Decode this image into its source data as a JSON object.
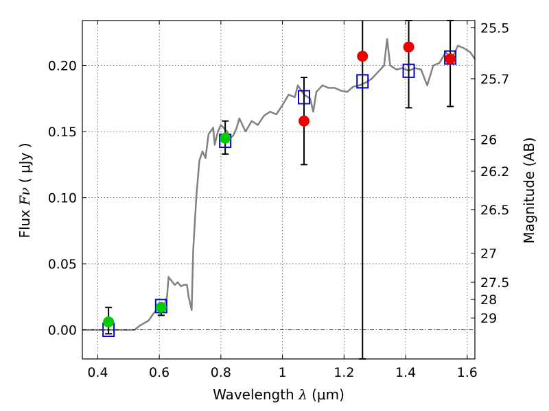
{
  "chart_data": {
    "type": "scatter",
    "xlabel_prefix": "Wavelength",
    "xlabel_symbol": "λ",
    "xlabel_unit": "(μm)",
    "ylabel_prefix": "Flux",
    "ylabel_symbol": "Fν",
    "ylabel_unit": "( μJy )",
    "y2label": "Magnitude (AB)",
    "xlim": [
      0.35,
      1.625
    ],
    "ylim": [
      -0.022,
      0.234
    ],
    "grid": true,
    "x_ticks": [
      {
        "value": 0.4,
        "label": "0.4"
      },
      {
        "value": 0.6,
        "label": "0.6"
      },
      {
        "value": 0.8,
        "label": "0.8"
      },
      {
        "value": 1.0,
        "label": "1"
      },
      {
        "value": 1.2,
        "label": "1.2"
      },
      {
        "value": 1.4,
        "label": "1.4"
      },
      {
        "value": 1.6,
        "label": "1.6"
      }
    ],
    "y_ticks": [
      {
        "value": 0.0,
        "label": "0.00"
      },
      {
        "value": 0.05,
        "label": "0.05"
      },
      {
        "value": 0.1,
        "label": "0.10"
      },
      {
        "value": 0.15,
        "label": "0.15"
      },
      {
        "value": 0.2,
        "label": "0.20"
      }
    ],
    "magnitude_ticks": [
      {
        "flux": 0.2285,
        "label": "25.5"
      },
      {
        "flux": 0.19,
        "label": "25.7"
      },
      {
        "flux": 0.144,
        "label": "26"
      },
      {
        "flux": 0.12,
        "label": "26.2"
      },
      {
        "flux": 0.091,
        "label": "26.5"
      },
      {
        "flux": 0.058,
        "label": "27"
      },
      {
        "flux": 0.036,
        "label": "27.5"
      },
      {
        "flux": 0.023,
        "label": "28"
      },
      {
        "flux": 0.009,
        "label": "29"
      }
    ],
    "colors": {
      "model": "#808080",
      "model_photometry": "#0000cc",
      "detections": "#00cc00",
      "upper_constraints": "#ee0000",
      "errorbar": "#000000",
      "zero_line": "#000000"
    },
    "model_spectrum": [
      [
        0.35,
        0.0
      ],
      [
        0.52,
        0.0
      ],
      [
        0.535,
        0.003
      ],
      [
        0.55,
        0.005
      ],
      [
        0.565,
        0.007
      ],
      [
        0.58,
        0.012
      ],
      [
        0.59,
        0.015
      ],
      [
        0.6,
        0.016
      ],
      [
        0.615,
        0.018
      ],
      [
        0.625,
        0.025
      ],
      [
        0.63,
        0.04
      ],
      [
        0.64,
        0.037
      ],
      [
        0.65,
        0.034
      ],
      [
        0.66,
        0.036
      ],
      [
        0.67,
        0.033
      ],
      [
        0.68,
        0.034
      ],
      [
        0.69,
        0.034
      ],
      [
        0.695,
        0.025
      ],
      [
        0.705,
        0.015
      ],
      [
        0.71,
        0.06
      ],
      [
        0.72,
        0.1
      ],
      [
        0.73,
        0.128
      ],
      [
        0.74,
        0.135
      ],
      [
        0.75,
        0.13
      ],
      [
        0.76,
        0.148
      ],
      [
        0.775,
        0.153
      ],
      [
        0.78,
        0.14
      ],
      [
        0.79,
        0.15
      ],
      [
        0.8,
        0.155
      ],
      [
        0.82,
        0.15
      ],
      [
        0.83,
        0.145
      ],
      [
        0.84,
        0.147
      ],
      [
        0.85,
        0.152
      ],
      [
        0.86,
        0.16
      ],
      [
        0.87,
        0.155
      ],
      [
        0.88,
        0.15
      ],
      [
        0.9,
        0.158
      ],
      [
        0.92,
        0.155
      ],
      [
        0.94,
        0.162
      ],
      [
        0.96,
        0.165
      ],
      [
        0.98,
        0.163
      ],
      [
        1.0,
        0.17
      ],
      [
        1.02,
        0.178
      ],
      [
        1.04,
        0.176
      ],
      [
        1.05,
        0.185
      ],
      [
        1.07,
        0.178
      ],
      [
        1.09,
        0.175
      ],
      [
        1.1,
        0.165
      ],
      [
        1.11,
        0.18
      ],
      [
        1.13,
        0.185
      ],
      [
        1.15,
        0.183
      ],
      [
        1.17,
        0.183
      ],
      [
        1.19,
        0.181
      ],
      [
        1.21,
        0.18
      ],
      [
        1.23,
        0.184
      ],
      [
        1.25,
        0.185
      ],
      [
        1.27,
        0.187
      ],
      [
        1.29,
        0.19
      ],
      [
        1.31,
        0.195
      ],
      [
        1.33,
        0.2
      ],
      [
        1.34,
        0.22
      ],
      [
        1.35,
        0.2
      ],
      [
        1.37,
        0.197
      ],
      [
        1.39,
        0.198
      ],
      [
        1.41,
        0.196
      ],
      [
        1.43,
        0.198
      ],
      [
        1.45,
        0.197
      ],
      [
        1.47,
        0.185
      ],
      [
        1.49,
        0.2
      ],
      [
        1.51,
        0.202
      ],
      [
        1.53,
        0.21
      ],
      [
        1.55,
        0.205
      ],
      [
        1.57,
        0.215
      ],
      [
        1.59,
        0.213
      ],
      [
        1.61,
        0.21
      ],
      [
        1.625,
        0.205
      ]
    ],
    "model_photometry": [
      {
        "x": 0.435,
        "y": 0.0
      },
      {
        "x": 0.606,
        "y": 0.018
      },
      {
        "x": 0.814,
        "y": 0.143
      },
      {
        "x": 1.07,
        "y": 0.176
      },
      {
        "x": 1.26,
        "y": 0.188
      },
      {
        "x": 1.41,
        "y": 0.196
      },
      {
        "x": 1.545,
        "y": 0.206
      }
    ],
    "observations": [
      {
        "x": 0.435,
        "y": 0.006,
        "err_lo": 0.009,
        "err_hi": 0.011,
        "color": "green"
      },
      {
        "x": 0.606,
        "y": 0.017,
        "err_lo": 0.006,
        "err_hi": 0.002,
        "color": "green"
      },
      {
        "x": 0.814,
        "y": 0.145,
        "err_lo": 0.012,
        "err_hi": 0.013,
        "color": "green"
      },
      {
        "x": 1.07,
        "y": 0.158,
        "err_lo": 0.033,
        "err_hi": 0.033,
        "color": "red"
      },
      {
        "x": 1.26,
        "y": 0.207,
        "err_lo": 0.229,
        "err_hi": 0.03,
        "color": "red"
      },
      {
        "x": 1.41,
        "y": 0.214,
        "err_lo": 0.046,
        "err_hi": 0.02,
        "color": "red"
      },
      {
        "x": 1.545,
        "y": 0.205,
        "err_lo": 0.036,
        "err_hi": 0.029,
        "color": "red"
      }
    ]
  }
}
